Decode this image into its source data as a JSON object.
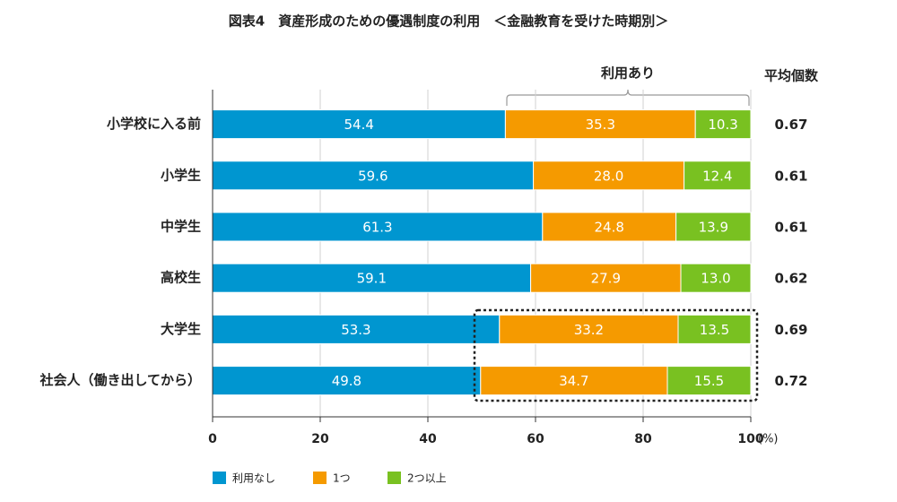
{
  "chart_data": {
    "type": "bar",
    "orientation": "horizontal",
    "stacked": true,
    "title": "図表4　資産形成のための優遇制度の利用　＜金融教育を受けた時期別＞",
    "categories": [
      "小学校に入る前",
      "小学生",
      "中学生",
      "高校生",
      "大学生",
      "社会人（働き出してから）"
    ],
    "series": [
      {
        "name": "利用なし",
        "color": "#0096d0",
        "values": [
          54.4,
          59.6,
          61.3,
          59.1,
          53.3,
          49.8
        ],
        "value_labels": [
          "54.4",
          "59.6",
          "61.3",
          "59.1",
          "53.3",
          "49.8"
        ]
      },
      {
        "name": "1つ",
        "color": "#f59a00",
        "values": [
          35.3,
          28.0,
          24.8,
          27.9,
          33.2,
          34.7
        ],
        "value_labels": [
          "35.3",
          "28.0",
          "24.8",
          "27.9",
          "33.2",
          "34.7"
        ]
      },
      {
        "name": "2つ以上",
        "color": "#79c121",
        "values": [
          10.3,
          12.4,
          13.9,
          13.0,
          13.5,
          15.5
        ],
        "value_labels": [
          "10.3",
          "12.4",
          "13.9",
          "13.0",
          "13.5",
          "15.5"
        ]
      }
    ],
    "xlim": [
      0,
      100
    ],
    "xticks": [
      0,
      20,
      40,
      60,
      80,
      100
    ],
    "x_unit": "(%)",
    "grid": true,
    "annotation": "利用あり",
    "average": {
      "title": "平均個数",
      "values": [
        0.67,
        0.61,
        0.61,
        0.62,
        0.69,
        0.72
      ]
    }
  }
}
